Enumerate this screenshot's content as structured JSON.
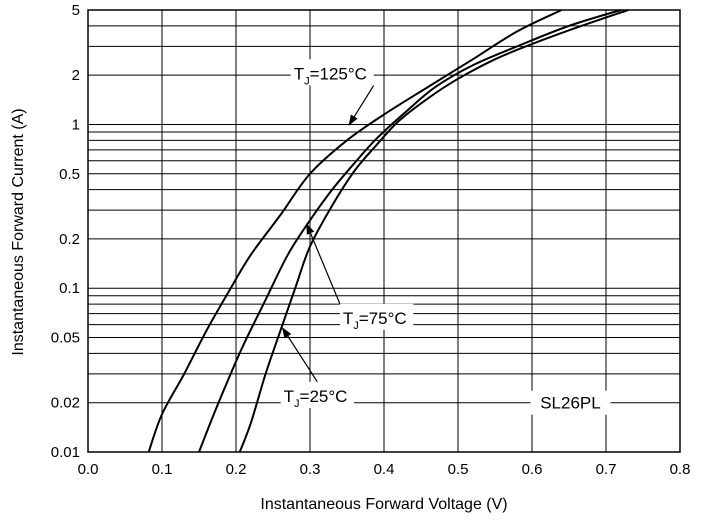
{
  "chart_data": {
    "type": "line",
    "title": "",
    "xlabel": "Instantaneous Forward Voltage (V)",
    "ylabel": "Instantaneous Forward Current (A)",
    "xlim": [
      0.0,
      0.8
    ],
    "ylim": [
      0.01,
      5
    ],
    "yscale": "log",
    "grid": true,
    "x_ticks": [
      "0.0",
      "0.1",
      "0.2",
      "0.3",
      "0.4",
      "0.5",
      "0.6",
      "0.7",
      "0.8"
    ],
    "y_ticks": [
      "0.01",
      "0.02",
      "0.05",
      "0.1",
      "0.2",
      "0.5",
      "1",
      "2",
      "5"
    ],
    "part_label": "SL26PL",
    "series": [
      {
        "name": "TJ=125°C",
        "label_main": "T",
        "label_sub": "J",
        "label_rest": "=125°C",
        "x": [
          0.082,
          0.1,
          0.13,
          0.16,
          0.19,
          0.22,
          0.26,
          0.3,
          0.35,
          0.4,
          0.46,
          0.52,
          0.58,
          0.64
        ],
        "y": [
          0.01,
          0.017,
          0.03,
          0.055,
          0.095,
          0.16,
          0.28,
          0.5,
          0.8,
          1.15,
          1.7,
          2.5,
          3.7,
          5.0
        ]
      },
      {
        "name": "TJ=75°C",
        "label_main": "T",
        "label_sub": "J",
        "label_rest": "=75°C",
        "x": [
          0.15,
          0.17,
          0.19,
          0.21,
          0.24,
          0.27,
          0.3,
          0.33,
          0.36,
          0.39,
          0.43,
          0.47,
          0.52,
          0.58,
          0.65,
          0.72
        ],
        "y": [
          0.01,
          0.017,
          0.028,
          0.045,
          0.085,
          0.16,
          0.26,
          0.4,
          0.58,
          0.82,
          1.2,
          1.7,
          2.3,
          3.0,
          4.0,
          5.0
        ]
      },
      {
        "name": "TJ=25°C",
        "label_main": "T",
        "label_sub": "J",
        "label_rest": "=25°C",
        "x": [
          0.205,
          0.22,
          0.24,
          0.26,
          0.28,
          0.3,
          0.33,
          0.36,
          0.39,
          0.42,
          0.46,
          0.5,
          0.55,
          0.6,
          0.66,
          0.73
        ],
        "y": [
          0.01,
          0.015,
          0.03,
          0.055,
          0.1,
          0.18,
          0.32,
          0.52,
          0.75,
          1.05,
          1.45,
          1.9,
          2.5,
          3.1,
          3.9,
          5.0
        ]
      }
    ],
    "annotations": [
      {
        "series": 0,
        "label_x": 0.33,
        "label_y": 2.05,
        "arrow_to_x": 0.352,
        "arrow_to_y": 0.98
      },
      {
        "series": 1,
        "label_x": 0.39,
        "label_y": 0.066,
        "arrow_to_x": 0.295,
        "arrow_to_y": 0.25
      },
      {
        "series": 2,
        "label_x": 0.31,
        "label_y": 0.022,
        "arrow_to_x": 0.262,
        "arrow_to_y": 0.058
      }
    ]
  }
}
